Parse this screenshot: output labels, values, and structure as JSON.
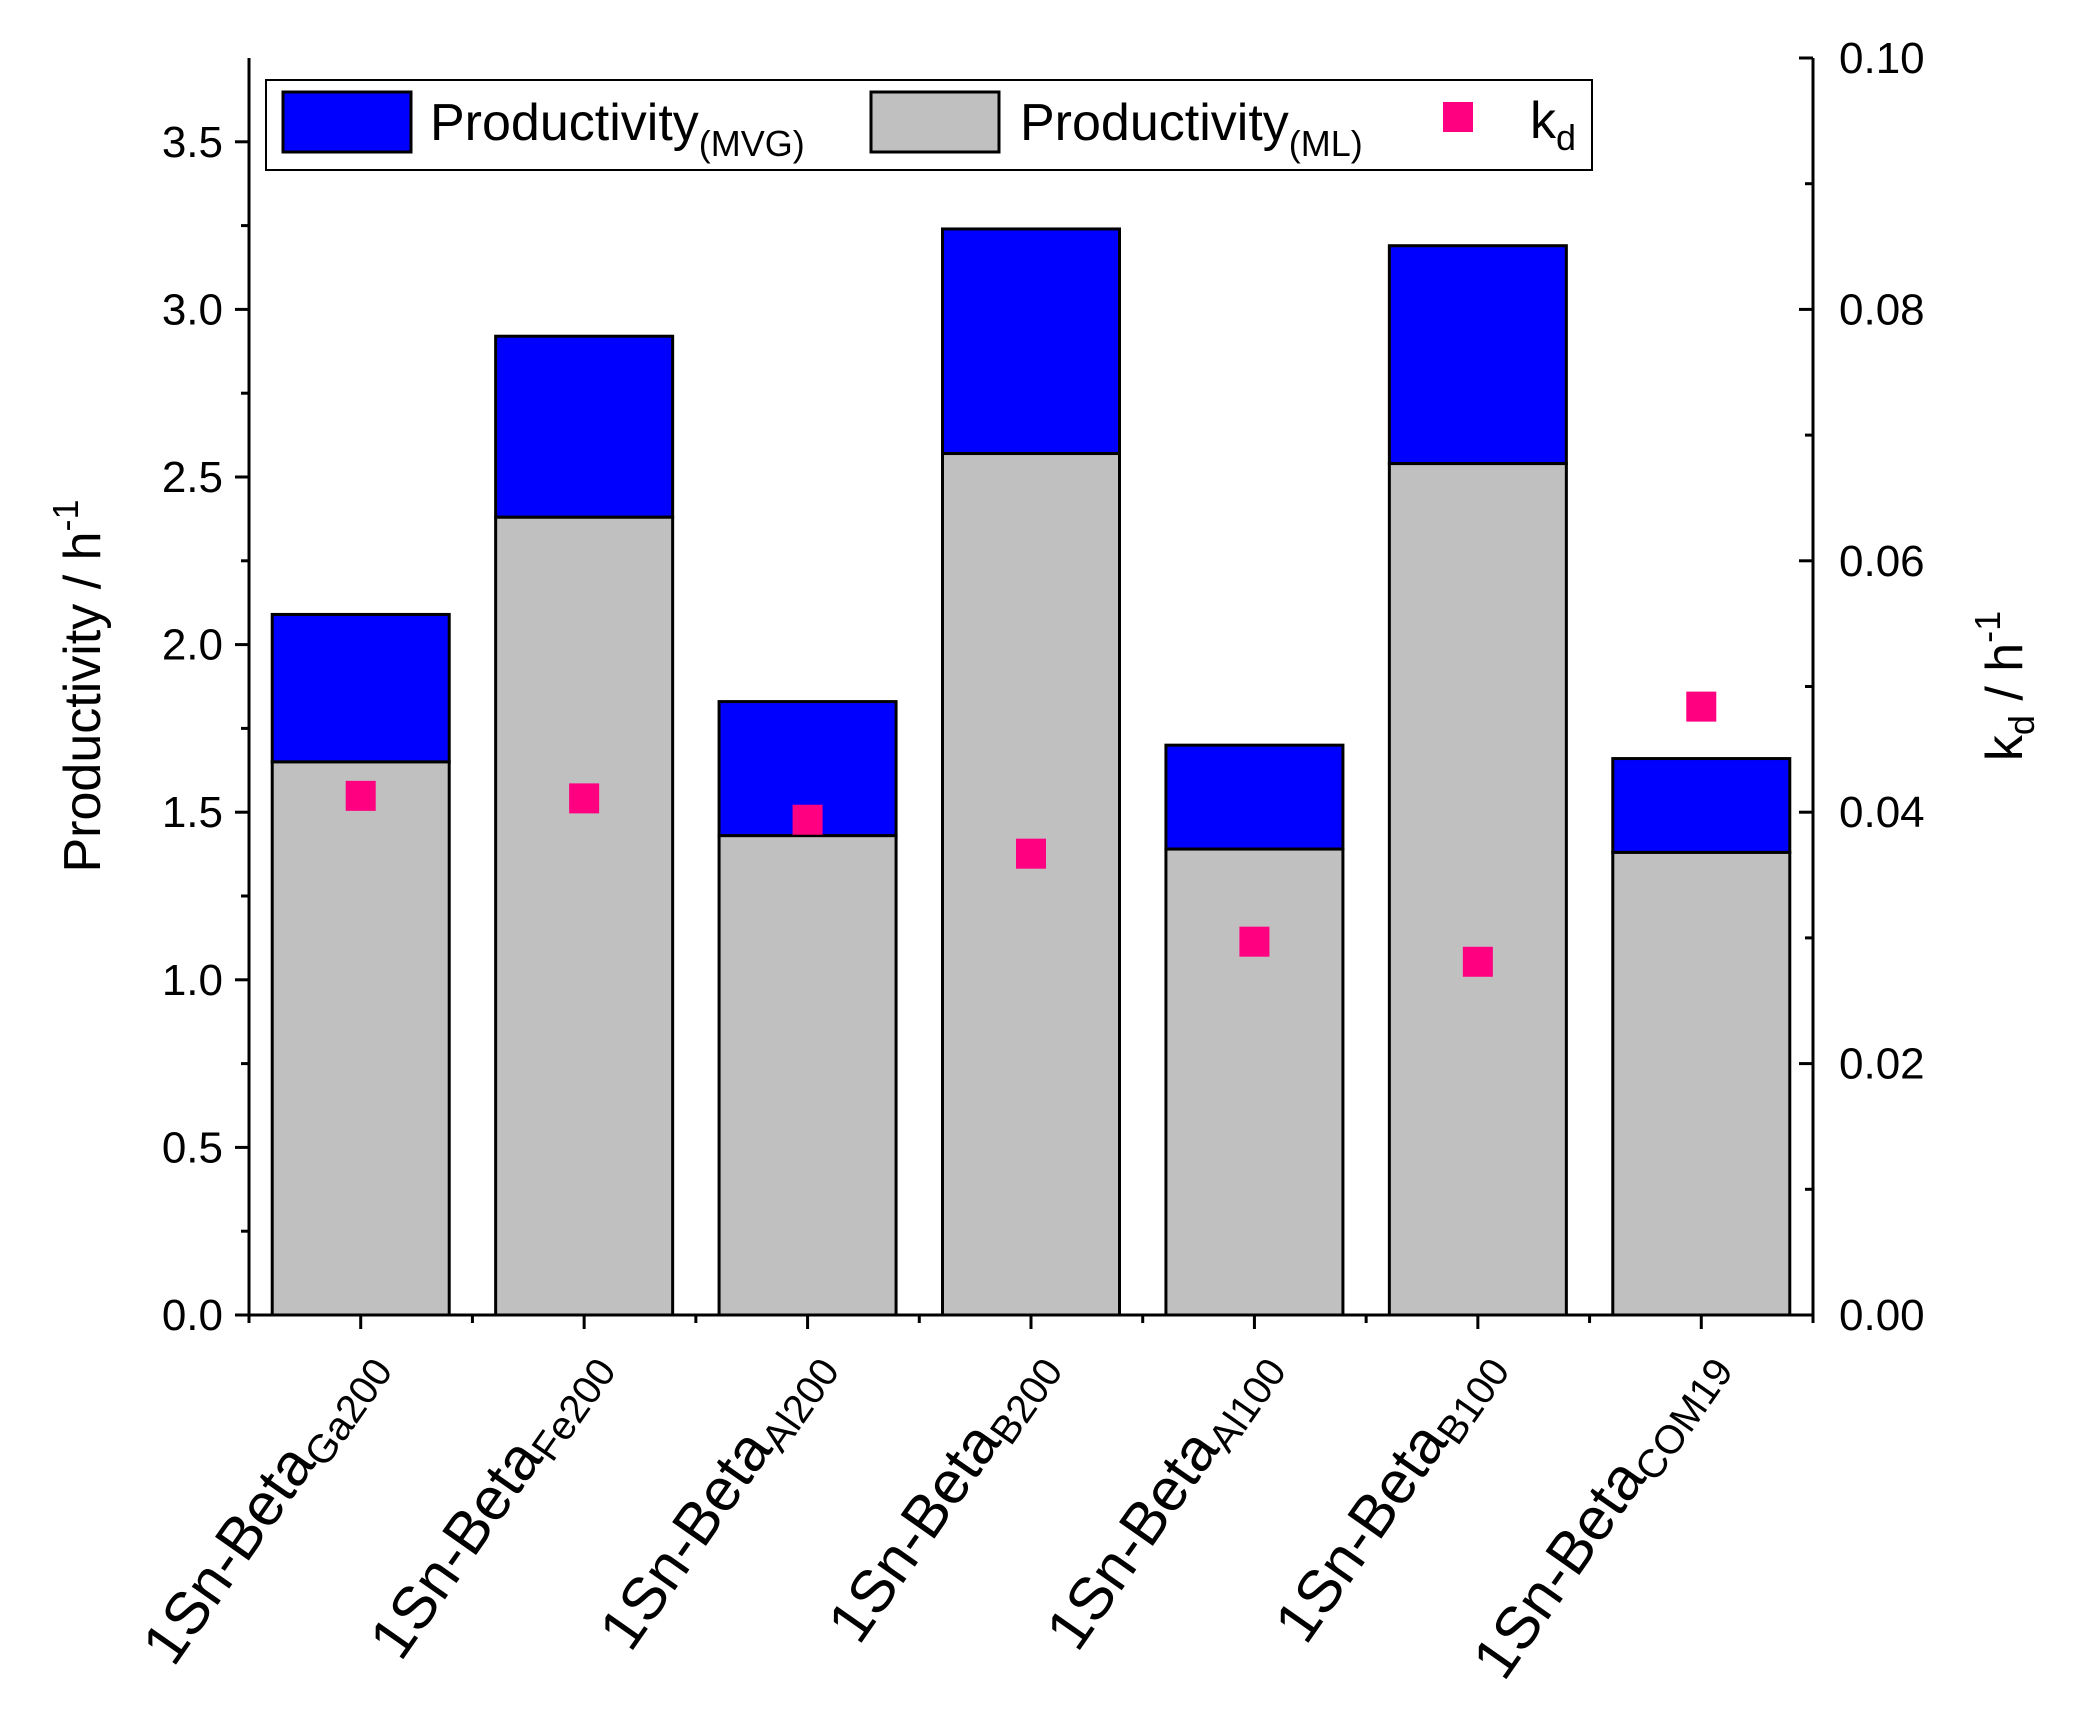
{
  "chart_data": {
    "type": "bar",
    "stacked": true,
    "categories": [
      {
        "base": "1Sn-Beta",
        "sub": "Ga200"
      },
      {
        "base": "1Sn-Beta",
        "sub": "Fe200"
      },
      {
        "base": "1Sn-Beta",
        "sub": "Al200"
      },
      {
        "base": "1Sn-Beta",
        "sub": "B200"
      },
      {
        "base": "1Sn-Beta",
        "sub": "Al100"
      },
      {
        "base": "1Sn-Beta",
        "sub": "B100"
      },
      {
        "base": "1Sn-Beta",
        "sub": "COM19"
      }
    ],
    "series": [
      {
        "name": "Productivity",
        "sub": "(ML)",
        "axis": "left",
        "color": "#C0C0C0",
        "values": [
          1.65,
          2.38,
          1.43,
          2.57,
          1.39,
          2.54,
          1.38
        ]
      },
      {
        "name": "Productivity",
        "sub": "(MVG)",
        "axis": "left",
        "color": "#0000FF",
        "stack_totals": [
          2.09,
          2.92,
          1.83,
          3.24,
          1.7,
          3.19,
          1.66
        ]
      },
      {
        "name": "k",
        "sub": "d",
        "axis": "right",
        "type": "scatter",
        "color": "#FF0080",
        "values": [
          0.0413,
          0.0411,
          0.0394,
          0.0367,
          0.0297,
          0.0281,
          0.0484
        ]
      }
    ],
    "y_left": {
      "label": "Productivity / h",
      "label_sup": "-1",
      "ylim": [
        0,
        3.75
      ],
      "ticks": [
        "0.0",
        "0.5",
        "1.0",
        "1.5",
        "2.0",
        "2.5",
        "3.0",
        "3.5"
      ],
      "tick_values": [
        0,
        0.5,
        1.0,
        1.5,
        2.0,
        2.5,
        3.0,
        3.5
      ]
    },
    "y_right": {
      "label_main": "k",
      "label_sub": "d",
      "label_rest": " / h",
      "label_sup": "-1",
      "ylim": [
        0,
        0.1
      ],
      "ticks": [
        "0.00",
        "0.02",
        "0.04",
        "0.06",
        "0.08",
        "0.10"
      ],
      "tick_values": [
        0,
        0.02,
        0.04,
        0.06,
        0.08,
        0.1
      ]
    },
    "legend": {
      "placement": "top-left",
      "entries": [
        {
          "name": "Productivity",
          "sub": "(MVG)",
          "color": "#0000FF",
          "kind": "box"
        },
        {
          "name": "Productivity",
          "sub": "(ML)",
          "color": "#C0C0C0",
          "kind": "box"
        },
        {
          "name": "k",
          "sub": "d",
          "color": "#FF0080",
          "kind": "marker"
        }
      ]
    },
    "grid": false
  }
}
